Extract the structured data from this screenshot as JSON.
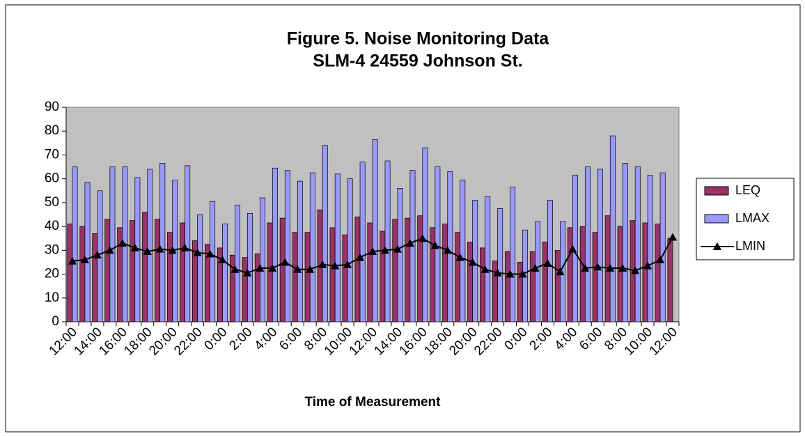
{
  "chart_data": {
    "type": "bar",
    "title": "Figure 5. Noise Monitoring Data",
    "subtitle": "SLM-4  24559 Johnson St.",
    "x_label": "Time of Measurement",
    "categories": [
      "12:00",
      null,
      "14:00",
      null,
      "16:00",
      null,
      "18:00",
      null,
      "20:00",
      null,
      "22:00",
      null,
      "0:00",
      null,
      "2:00",
      null,
      "4:00",
      null,
      "6:00",
      null,
      "8:00",
      null,
      "10:00",
      null,
      "12:00",
      null,
      "14:00",
      null,
      "16:00",
      null,
      "18:00",
      null,
      "20:00",
      null,
      "22:00",
      null,
      "0:00",
      null,
      "2:00",
      null,
      "4:00",
      null,
      "6:00",
      null,
      "8:00",
      null,
      "10:00",
      null,
      "12:00"
    ],
    "series": [
      {
        "name": "LEQ",
        "type": "bar",
        "color": "#993366",
        "values": [
          41,
          40,
          37,
          43,
          39.5,
          42.5,
          46,
          43,
          37.5,
          41.5,
          34,
          32.5,
          31,
          28,
          27,
          28.5,
          41.5,
          43.5,
          37.5,
          37.5,
          47,
          39.5,
          36.5,
          44,
          41.5,
          38,
          43,
          43.5,
          44.5,
          39.5,
          41,
          37.5,
          33.5,
          31,
          25.5,
          29.5,
          25,
          29.5,
          33.5,
          30,
          39.5,
          40,
          37.5,
          44.5,
          40,
          42.5,
          41.5,
          41,
          35
        ]
      },
      {
        "name": "LMAX",
        "type": "bar",
        "color": "#9999ff",
        "values": [
          65,
          58.5,
          55,
          65,
          65,
          60.5,
          64,
          66.5,
          59.5,
          65.5,
          45,
          50.5,
          41,
          49,
          45.5,
          52,
          64.5,
          63.5,
          59,
          62.5,
          74,
          62,
          60,
          67,
          76.5,
          67.5,
          56,
          63.5,
          73,
          65,
          63,
          59.5,
          51,
          52.5,
          47.5,
          56.5,
          38.5,
          42,
          51,
          42,
          61.5,
          65,
          64,
          78,
          66.5,
          65,
          61.5,
          62.5,
          null
        ]
      },
      {
        "name": "LMIN",
        "type": "line",
        "color": "#000000",
        "values": [
          25.5,
          26,
          28,
          30,
          33,
          31,
          29.5,
          30.5,
          30,
          31,
          29,
          28.5,
          26,
          22,
          20.5,
          22.5,
          22.5,
          25,
          22,
          22,
          24,
          23.5,
          24,
          27,
          29.5,
          30,
          30.5,
          33,
          35,
          32,
          30,
          27,
          25,
          22,
          20.5,
          20,
          20,
          22.5,
          24.5,
          21,
          30.5,
          22.5,
          23,
          22.5,
          22.5,
          21.5,
          23.5,
          26,
          35.5
        ]
      }
    ],
    "ylim": [
      0,
      90
    ],
    "yticks": [
      0,
      10,
      20,
      30,
      40,
      50,
      60,
      70,
      80,
      90
    ],
    "plot_background": "#c0c0c0",
    "legend": "right"
  }
}
